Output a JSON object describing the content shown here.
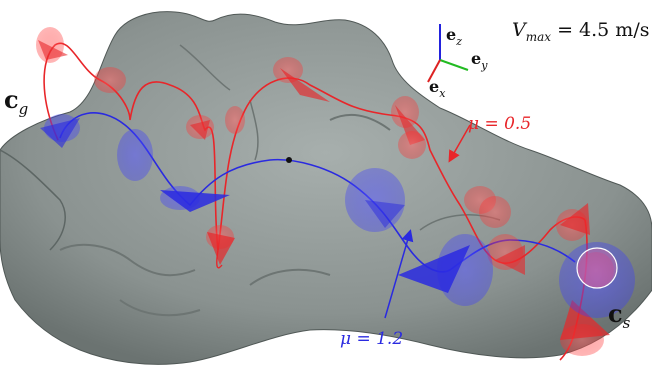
{
  "labels": {
    "goal": "c",
    "goal_sub": "g",
    "start": "c",
    "start_sub": "s",
    "vmax_lhs": "V",
    "vmax_sub": "max",
    "vmax_rhs": " = 4.5 m/s",
    "mu_red": "μ = 0.5",
    "mu_blue": "μ = 1.2"
  },
  "axes": {
    "ez": "e",
    "ez_sub": "z",
    "ey": "e",
    "ey_sub": "y",
    "ex": "e",
    "ex_sub": "x"
  },
  "colors": {
    "terrain": "#8f9795",
    "terrain_dark": "#5d6664",
    "red": "#e8262a",
    "blue": "#2a2ae0",
    "axis_z": "#2222dd",
    "axis_y": "#22bb22",
    "axis_x": "#dd2222"
  }
}
